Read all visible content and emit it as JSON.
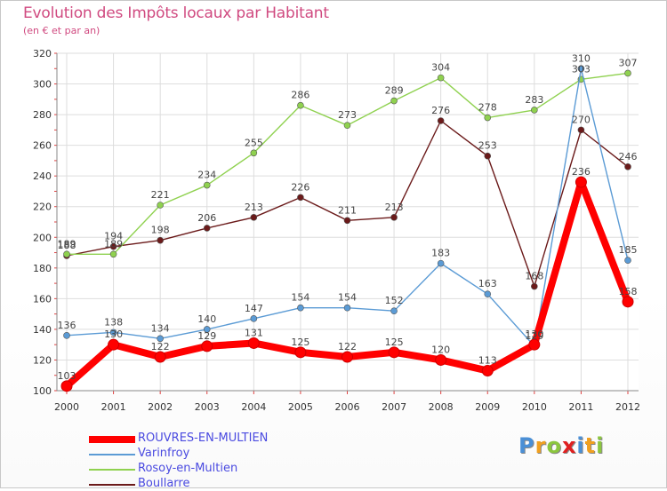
{
  "chart_data": {
    "type": "line",
    "title": "Evolution des Impôts locaux par Habitant",
    "subtitle": "(en € et par an)",
    "categories": [
      "2000",
      "2001",
      "2002",
      "2003",
      "2004",
      "2005",
      "2006",
      "2007",
      "2008",
      "2009",
      "2010",
      "2011",
      "2012"
    ],
    "ylim": [
      100,
      320
    ],
    "yticks": [
      100,
      120,
      140,
      160,
      180,
      200,
      220,
      240,
      260,
      280,
      300,
      320
    ],
    "grid": true,
    "legend_position": "bottom-left",
    "series": [
      {
        "name": "ROUVRES-EN-MULTIEN",
        "color": "#ff0000",
        "bold": true,
        "values": [
          103,
          130,
          122,
          129,
          131,
          125,
          122,
          125,
          120,
          113,
          130,
          236,
          158
        ]
      },
      {
        "name": "Varinfroy",
        "color": "#5b9bd5",
        "values": [
          136,
          138,
          134,
          140,
          147,
          154,
          154,
          152,
          183,
          163,
          129,
          310,
          185
        ]
      },
      {
        "name": "Rosoy-en-Multien",
        "color": "#8fd14f",
        "values": [
          189,
          189,
          221,
          234,
          255,
          286,
          273,
          289,
          304,
          278,
          283,
          303,
          307
        ]
      },
      {
        "name": "Boullarre",
        "color": "#6b1a1a",
        "values": [
          188,
          194,
          198,
          206,
          213,
          226,
          211,
          213,
          276,
          253,
          168,
          270,
          246
        ]
      }
    ]
  },
  "logo": {
    "letters": [
      {
        "ch": "P",
        "color": "#4a8fd6"
      },
      {
        "ch": "r",
        "color": "#f0a020"
      },
      {
        "ch": "o",
        "color": "#8cc63f"
      },
      {
        "ch": "x",
        "color": "#e02020"
      },
      {
        "ch": "i",
        "color": "#4a8fd6"
      },
      {
        "ch": "t",
        "color": "#f0a020"
      },
      {
        "ch": "i",
        "color": "#8cc63f"
      }
    ]
  }
}
